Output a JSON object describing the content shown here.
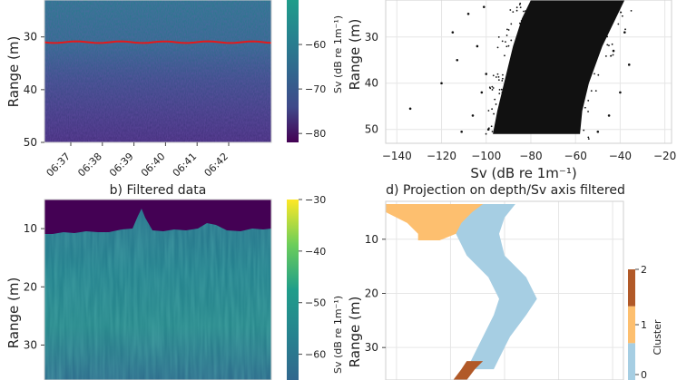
{
  "colors": {
    "viridis": [
      "#440154",
      "#482777",
      "#3f4a8a",
      "#31678e",
      "#26838f",
      "#1f9d8a",
      "#6cce5a",
      "#b6de2b",
      "#fee825"
    ],
    "cluster": [
      "#a6cee3",
      "#fdbf6f",
      "#b15928"
    ],
    "track_line": "#e31a1c",
    "scatter": "#111111",
    "grid": "#e6e6e6"
  },
  "chart_data": [
    {
      "id": "a",
      "type": "heatmap",
      "title": "",
      "ylabel": "Range (m)",
      "xlabel": "",
      "ylim": [
        50,
        23
      ],
      "y_ticks": [
        30,
        40,
        50
      ],
      "x_ticks": [
        "06:37",
        "06:38",
        "06:39",
        "06:40",
        "06:41",
        "06:42"
      ],
      "line_depth_m": 31,
      "colorbar": {
        "label": "Sv (dB re 1m⁻¹)",
        "range": [
          -82,
          -50
        ],
        "ticks": [
          -60,
          -70,
          -80
        ]
      }
    },
    {
      "id": "b",
      "type": "heatmap",
      "title": "b) Filtered data",
      "ylabel": "Range (m)",
      "ylim": [
        5,
        36
      ],
      "y_ticks": [
        10,
        20,
        30
      ],
      "colorbar": {
        "label": "Sv (dB re 1m⁻¹)",
        "range": [
          -65,
          -30
        ],
        "ticks": [
          -30,
          -40,
          -50,
          -60
        ]
      }
    },
    {
      "id": "c",
      "type": "scatter",
      "title": "",
      "xlabel": "Sv (dB re 1m⁻¹)",
      "ylabel": "Range (m)",
      "xlim": [
        -145,
        -17
      ],
      "ylim": [
        53,
        22
      ],
      "x_ticks": [
        -140,
        -120,
        -100,
        -80,
        -60,
        -40,
        -20
      ],
      "y_ticks": [
        30,
        40,
        50
      ],
      "bulk_envelope": [
        {
          "depth": 22,
          "sv_min": -80,
          "sv_max": -38
        },
        {
          "depth": 26,
          "sv_min": -84,
          "sv_max": -42
        },
        {
          "depth": 32,
          "sv_min": -88,
          "sv_max": -48
        },
        {
          "depth": 40,
          "sv_min": -92,
          "sv_max": -54
        },
        {
          "depth": 46,
          "sv_min": -95,
          "sv_max": -57
        },
        {
          "depth": 51,
          "sv_min": -97,
          "sv_max": -58
        }
      ],
      "outliers": [
        {
          "sv": -134,
          "depth": 45.5
        },
        {
          "sv": -120,
          "depth": 40
        },
        {
          "sv": -115,
          "depth": 29
        },
        {
          "sv": -113,
          "depth": 35
        },
        {
          "sv": -111,
          "depth": 50.5
        },
        {
          "sv": -108,
          "depth": 25
        },
        {
          "sv": -106,
          "depth": 47
        },
        {
          "sv": -104,
          "depth": 32
        },
        {
          "sv": -102,
          "depth": 42
        },
        {
          "sv": -101,
          "depth": 23.5
        },
        {
          "sv": -100,
          "depth": 38
        },
        {
          "sv": -99,
          "depth": 50
        },
        {
          "sv": -36,
          "depth": 36
        },
        {
          "sv": -40,
          "depth": 42
        },
        {
          "sv": -38,
          "depth": 29
        },
        {
          "sv": -45,
          "depth": 47
        },
        {
          "sv": -50,
          "depth": 50.5
        },
        {
          "sv": -43,
          "depth": 33
        }
      ]
    },
    {
      "id": "d",
      "type": "scatter",
      "title": "d) Projection on depth/Sv axis filtered",
      "ylabel": "Range (m)",
      "xlim": [
        -72,
        -28
      ],
      "ylim": [
        3,
        36
      ],
      "x_gridlines": [
        -70,
        -60,
        -50,
        -40,
        -30
      ],
      "y_ticks": [
        10,
        20,
        30
      ],
      "legend_title": "Cluster",
      "legend_ticks": [
        "0",
        "1",
        "2"
      ],
      "clusters": [
        {
          "name": "0",
          "path": [
            {
              "depth": 3.5,
              "sv_min": -58,
              "sv_max": -48
            },
            {
              "depth": 6,
              "sv_min": -58,
              "sv_max": -50
            },
            {
              "depth": 9,
              "sv_min": -59,
              "sv_max": -51
            },
            {
              "depth": 13,
              "sv_min": -57,
              "sv_max": -50
            },
            {
              "depth": 17,
              "sv_min": -53,
              "sv_max": -46
            },
            {
              "depth": 21,
              "sv_min": -51,
              "sv_max": -44
            },
            {
              "depth": 24,
              "sv_min": -52,
              "sv_max": -46
            },
            {
              "depth": 28,
              "sv_min": -54,
              "sv_max": -49
            },
            {
              "depth": 32,
              "sv_min": -56,
              "sv_max": -51
            },
            {
              "depth": 34,
              "sv_min": -57,
              "sv_max": -52
            }
          ]
        },
        {
          "name": "1",
          "path": [
            {
              "depth": 3.5,
              "sv_min": -72,
              "sv_max": -54
            },
            {
              "depth": 5,
              "sv_min": -72,
              "sv_max": -56
            },
            {
              "depth": 7,
              "sv_min": -68,
              "sv_max": -58
            },
            {
              "depth": 9,
              "sv_min": -66,
              "sv_max": -59
            },
            {
              "depth": 10.2,
              "sv_min": -66,
              "sv_max": -62
            }
          ]
        },
        {
          "name": "2",
          "path": [
            {
              "depth": 32.5,
              "sv_min": -57,
              "sv_max": -54
            },
            {
              "depth": 34,
              "sv_min": -58,
              "sv_max": -55.5
            },
            {
              "depth": 36,
              "sv_min": -59.5,
              "sv_max": -57
            }
          ]
        }
      ]
    }
  ]
}
